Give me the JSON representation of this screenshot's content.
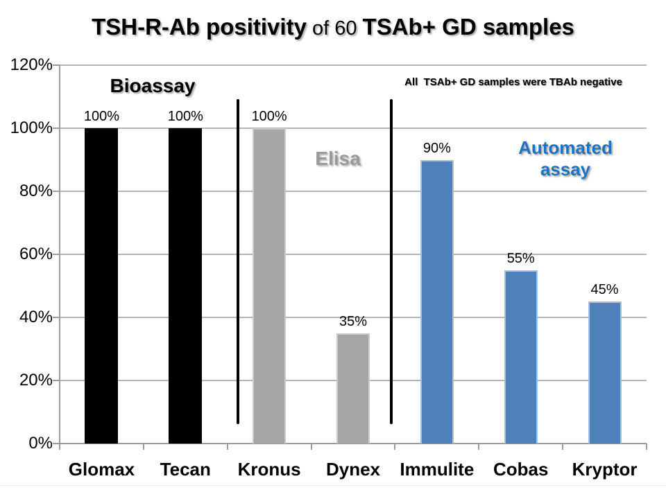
{
  "slide": {
    "title": {
      "part1": "TSH-R-Ab positivity",
      "part2": " of 60 ",
      "part3": "TSAb+ GD samples"
    },
    "annotations": {
      "bioassay": "Bioassay",
      "elisa": "Elisa",
      "automated_line1": "Automated",
      "automated_line2": "assay",
      "note": "All  TSAb+ GD samples were TBAb negative"
    }
  },
  "chart_data": {
    "type": "bar",
    "title": "TSH-R-Ab positivity of 60 TSAb+ GD samples",
    "categories": [
      "Glomax",
      "Tecan",
      "Kronus",
      "Dynex",
      "Immulite",
      "Cobas",
      "Kryptor"
    ],
    "values": [
      100,
      100,
      100,
      35,
      90,
      55,
      45
    ],
    "data_labels": [
      "100%",
      "100%",
      "100%",
      "35%",
      "90%",
      "55%",
      "45%"
    ],
    "xlabel": "",
    "ylabel": "",
    "ylim": [
      0,
      120
    ],
    "ytick_step": 20,
    "ytick_labels": [
      "0%",
      "20%",
      "40%",
      "60%",
      "80%",
      "100%",
      "120%"
    ],
    "grid": true,
    "legend": false,
    "annotation": "All TSAb+ GD samples were TBAb negative",
    "groups": [
      {
        "name": "Bioassay",
        "categories": [
          "Glomax",
          "Tecan"
        ],
        "color": "#000000"
      },
      {
        "name": "Elisa",
        "categories": [
          "Kronus",
          "Dynex"
        ],
        "color": "#A6A6A6"
      },
      {
        "name": "Automated assay",
        "categories": [
          "Immulite",
          "Cobas",
          "Kryptor"
        ],
        "color": "#4F81BD"
      }
    ],
    "bar_colors": [
      "#000000",
      "#000000",
      "#A6A6A6",
      "#A6A6A6",
      "#4F81BD",
      "#4F81BD",
      "#4F81BD"
    ],
    "bar_border_colors": [
      "#000000",
      "#000000",
      "#CBCBCB",
      "#CBCBCB",
      "#A7C1DF",
      "#A7C1DF",
      "#A7C1DF"
    ],
    "colors": {
      "bioassay_label": "#000000",
      "elisa_label": "#9A9A9A",
      "automated_label": "#1E73BE",
      "gridline": "#B5B5B5",
      "axis": "#9C9C9C"
    }
  }
}
